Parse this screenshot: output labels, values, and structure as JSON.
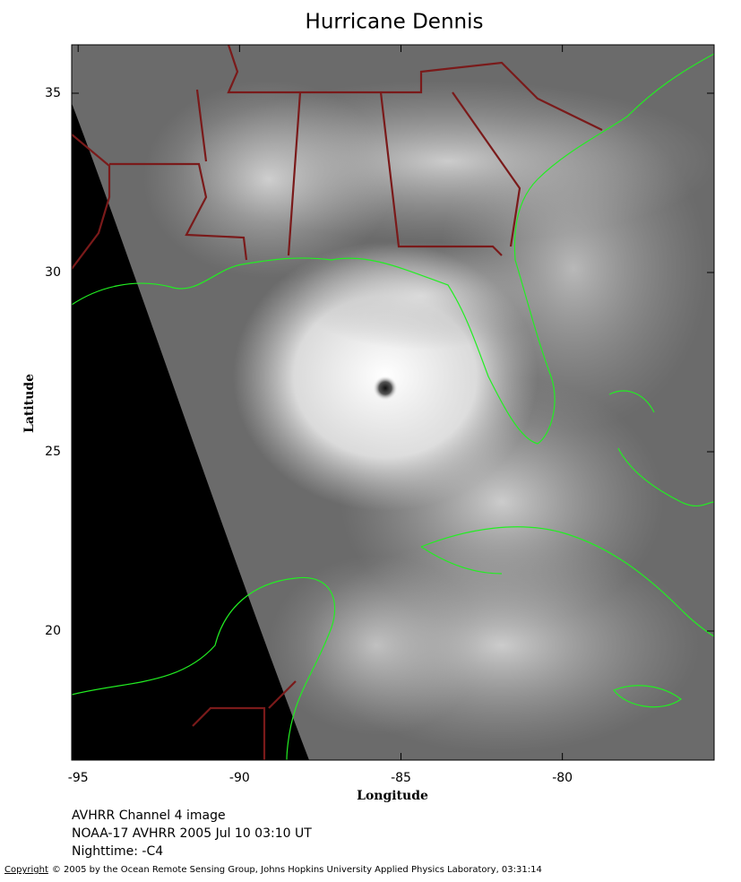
{
  "chart_data": {
    "type": "map",
    "title": "Hurricane Dennis",
    "x_label": "Longitude",
    "y_label": "Latitude",
    "xlim": [
      -95.2,
      -75.3
    ],
    "ylim": [
      16.4,
      36.35
    ],
    "xticks": [
      -95,
      -90,
      -85,
      -80
    ],
    "yticks": [
      20,
      25,
      30,
      35
    ]
  },
  "caption": [
    "AVHRR Channel 4 image",
    "NOAA-17 AVHRR 2005 Jul 10 03:10 UT",
    "Nighttime: -C4"
  ],
  "copyright": {
    "link": "Copyright",
    "text": "© 2005 by the Ocean Remote Sensing Group, Johns Hopkins University Applied Physics Laboratory, 03:31:14"
  }
}
